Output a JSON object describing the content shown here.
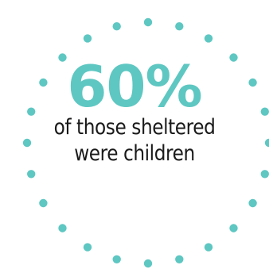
{
  "infographic": {
    "statistic": "60%",
    "caption_line_1": "of those sheltered",
    "caption_line_2": "were children"
  },
  "colors": {
    "accent": "#5ec7c2",
    "text": "#1a1a1a",
    "background": "#ffffff"
  },
  "decoration": {
    "shape": "ring-of-dots",
    "dot_count": 24
  }
}
